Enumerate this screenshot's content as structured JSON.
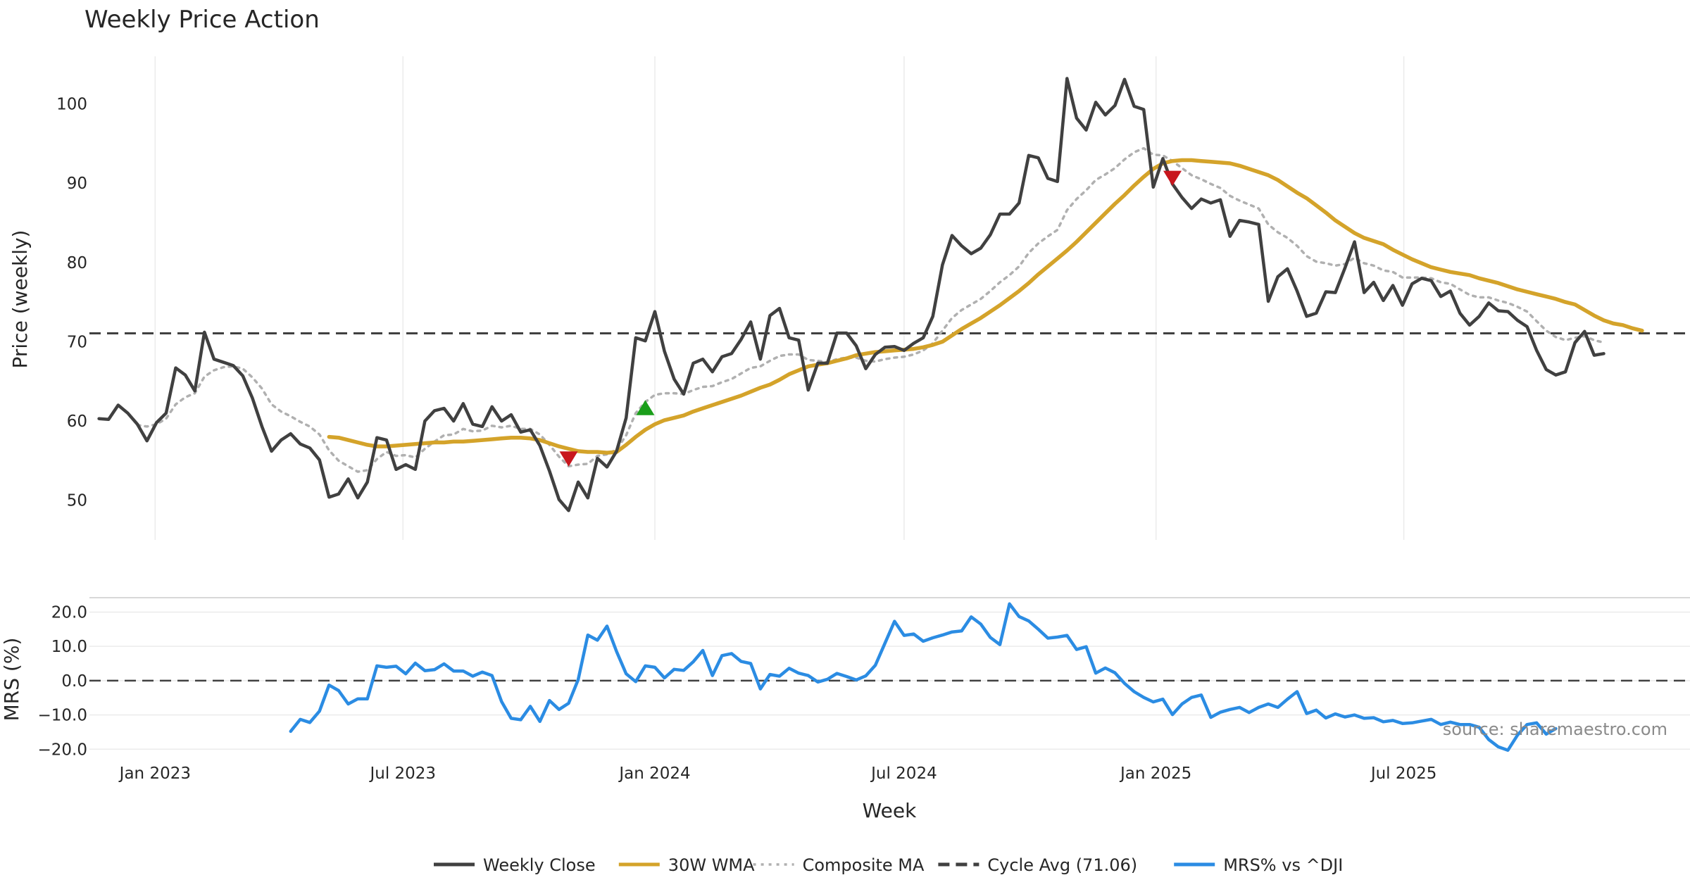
{
  "chart_data": [
    {
      "type": "line",
      "title": "Weekly Price Action",
      "ylabel": "Price (weekly)",
      "ylim": [
        45,
        106
      ],
      "yticks": [
        50,
        60,
        70,
        80,
        90,
        100
      ],
      "xlim": [
        "2022-11-14",
        "2026-01-26"
      ],
      "grid": true,
      "x_start": "2022-11-21",
      "x_step_days": 7,
      "series": [
        {
          "name": "Weekly Close",
          "color": "#404040",
          "values": [
            60.3,
            60.2,
            62.0,
            61.0,
            59.6,
            57.5,
            59.8,
            61.0,
            66.7,
            65.8,
            63.8,
            71.2,
            67.8,
            67.4,
            67.0,
            65.7,
            62.9,
            59.3,
            56.2,
            57.6,
            58.4,
            57.1,
            56.6,
            55.1,
            50.4,
            50.8,
            52.7,
            50.3,
            52.3,
            57.9,
            57.6,
            53.9,
            54.5,
            53.9,
            60.0,
            61.3,
            61.6,
            60.0,
            62.2,
            59.6,
            59.3,
            61.8,
            60.0,
            60.8,
            58.6,
            58.9,
            56.9,
            53.7,
            50.1,
            48.7,
            52.3,
            50.3,
            55.3,
            54.2,
            56.2,
            60.4,
            70.5,
            70.1,
            73.8,
            68.8,
            65.3,
            63.4,
            67.3,
            67.8,
            66.2,
            68.1,
            68.5,
            70.3,
            72.5,
            67.8,
            73.3,
            74.2,
            70.5,
            70.2,
            63.9,
            67.3,
            67.3,
            71.1,
            71.1,
            69.5,
            66.6,
            68.4,
            69.3,
            69.4,
            68.9,
            69.8,
            70.5,
            73.2,
            79.7,
            83.4,
            82.1,
            81.1,
            81.8,
            83.5,
            86.1,
            86.1,
            87.5,
            93.5,
            93.2,
            90.6,
            90.2,
            103.2,
            98.2,
            96.7,
            100.2,
            98.6,
            99.8,
            103.1,
            99.7,
            99.3,
            89.5,
            93.1,
            89.9,
            88.2,
            86.8,
            88.0,
            87.5,
            87.9,
            83.3,
            85.3,
            85.1,
            84.8,
            75.1,
            78.2,
            79.2,
            76.4,
            73.2,
            73.6,
            76.3,
            76.2,
            79.3,
            82.6,
            76.2,
            77.5,
            75.2,
            77.1,
            74.6,
            77.3,
            78.0,
            77.7,
            75.7,
            76.4,
            73.6,
            72.1,
            73.2,
            74.9,
            73.9,
            73.8,
            72.7,
            71.9,
            68.9,
            66.5,
            65.8,
            66.2,
            69.9,
            71.3,
            68.3,
            68.5
          ]
        },
        {
          "name": "30W WMA",
          "color": "#d4a32a",
          "x_start": "2023-05-08",
          "values": [
            58.0,
            57.9,
            57.6,
            57.3,
            57.0,
            56.8,
            56.8,
            56.9,
            57.0,
            57.1,
            57.2,
            57.3,
            57.3,
            57.4,
            57.4,
            57.5,
            57.6,
            57.7,
            57.8,
            57.9,
            57.9,
            57.8,
            57.6,
            57.2,
            56.8,
            56.5,
            56.2,
            56.1,
            56.1,
            56.0,
            56.1,
            57.0,
            58.0,
            58.9,
            59.6,
            60.1,
            60.4,
            60.7,
            61.2,
            61.6,
            62.0,
            62.4,
            62.8,
            63.2,
            63.7,
            64.2,
            64.6,
            65.2,
            65.9,
            66.4,
            66.9,
            67.1,
            67.3,
            67.6,
            67.9,
            68.3,
            68.5,
            68.7,
            68.8,
            68.9,
            69.0,
            69.1,
            69.3,
            69.6,
            70.0,
            70.8,
            71.6,
            72.3,
            73.0,
            73.8,
            74.6,
            75.5,
            76.4,
            77.4,
            78.5,
            79.5,
            80.5,
            81.5,
            82.6,
            83.8,
            85.0,
            86.2,
            87.4,
            88.5,
            89.7,
            90.8,
            91.8,
            92.5,
            92.8,
            92.9,
            92.9,
            92.8,
            92.7,
            92.6,
            92.5,
            92.2,
            91.8,
            91.4,
            91.0,
            90.4,
            89.6,
            88.8,
            88.1,
            87.2,
            86.3,
            85.3,
            84.5,
            83.7,
            83.1,
            82.7,
            82.3,
            81.6,
            81.0,
            80.4,
            79.9,
            79.4,
            79.1,
            78.8,
            78.6,
            78.4,
            78.0,
            77.7,
            77.4,
            77.0,
            76.6,
            76.3,
            76.0,
            75.7,
            75.4,
            75.0,
            74.7,
            74.0,
            73.3,
            72.7,
            72.3,
            72.1,
            71.7,
            71.4
          ]
        },
        {
          "name": "Composite MA",
          "color": "#b0b0b0",
          "values": [
            null,
            null,
            null,
            null,
            59.5,
            59.3,
            59.6,
            60.3,
            62.1,
            63.0,
            63.5,
            65.6,
            66.4,
            66.8,
            66.9,
            66.6,
            65.5,
            64.1,
            62.1,
            61.2,
            60.6,
            59.9,
            59.3,
            58.3,
            56.3,
            55.0,
            54.3,
            53.6,
            53.8,
            55.2,
            56.1,
            55.6,
            55.7,
            55.4,
            56.5,
            57.4,
            58.2,
            58.3,
            59.0,
            58.7,
            58.8,
            59.4,
            59.2,
            59.4,
            59.0,
            59.0,
            58.3,
            57.0,
            55.5,
            54.3,
            54.5,
            54.6,
            55.6,
            55.8,
            56.4,
            58.2,
            61.0,
            62.4,
            63.3,
            63.5,
            63.5,
            63.4,
            63.9,
            64.3,
            64.4,
            64.9,
            65.3,
            66.0,
            66.7,
            66.9,
            67.6,
            68.2,
            68.4,
            68.4,
            67.7,
            67.6,
            67.4,
            67.8,
            68.0,
            68.0,
            67.6,
            67.5,
            67.8,
            68.0,
            68.1,
            68.4,
            68.9,
            69.8,
            71.4,
            73.0,
            74.0,
            74.7,
            75.4,
            76.4,
            77.5,
            78.4,
            79.5,
            81.2,
            82.4,
            83.3,
            84.1,
            86.6,
            88.0,
            89.1,
            90.4,
            91.1,
            91.9,
            93.0,
            93.9,
            94.4,
            93.6,
            93.5,
            92.8,
            91.9,
            91.0,
            90.5,
            89.9,
            89.4,
            88.4,
            87.8,
            87.3,
            86.8,
            84.8,
            83.8,
            83.1,
            82.1,
            80.8,
            80.1,
            79.9,
            79.6,
            79.8,
            80.6,
            79.9,
            79.6,
            79.0,
            78.8,
            78.1,
            78.1,
            78.1,
            78.0,
            77.5,
            77.3,
            76.6,
            75.9,
            75.6,
            75.6,
            75.2,
            74.9,
            74.4,
            73.8,
            72.6,
            71.4,
            70.6,
            70.2,
            70.5,
            70.7,
            70.2,
            69.9
          ]
        }
      ],
      "reference_line": {
        "name": "Cycle Avg (71.06)",
        "value": 71.06,
        "color": "#404040"
      },
      "markers": [
        {
          "type": "sell",
          "x": "2023-10-30",
          "y": 55.3,
          "color": "#c8161d"
        },
        {
          "type": "buy",
          "x": "2023-12-25",
          "y": 61.6,
          "color": "#1a9e1a"
        },
        {
          "type": "sell",
          "x": "2025-01-13",
          "y": 90.7,
          "color": "#c8161d"
        }
      ]
    },
    {
      "type": "line",
      "ylabel": "MRS (%)",
      "xlabel": "Week",
      "ylim": [
        -22,
        24
      ],
      "yticks": [
        20.0,
        10.0,
        0.0,
        -10.0,
        -20.0
      ],
      "yticklabels": [
        "20.0",
        "10.0",
        "0.0",
        "−10.0",
        "−20.0"
      ],
      "xticks": [
        "2023-01-01",
        "2023-07-01",
        "2024-01-01",
        "2024-07-01",
        "2025-01-01",
        "2025-07-01"
      ],
      "xticklabels": [
        "Jan 2023",
        "Jul 2023",
        "Jan 2024",
        "Jul 2024",
        "Jan 2025",
        "Jul 2025"
      ],
      "series": [
        {
          "name": "MRS% vs ^DJI",
          "color": "#2b8ce3",
          "x_start": "2023-04-10",
          "values": [
            -14.8,
            -11.3,
            -12.2,
            -8.9,
            -1.3,
            -2.9,
            -6.8,
            -5.3,
            -5.3,
            4.3,
            3.9,
            4.2,
            2.0,
            5.1,
            2.9,
            3.2,
            4.9,
            2.8,
            2.8,
            1.3,
            2.5,
            1.5,
            -6.1,
            -11.0,
            -11.4,
            -7.5,
            -11.9,
            -5.8,
            -8.4,
            -6.6,
            0.3,
            13.3,
            11.8,
            15.9,
            8.5,
            2.0,
            -0.3,
            4.3,
            3.9,
            0.8,
            3.3,
            3.0,
            5.5,
            8.8,
            1.5,
            7.3,
            7.9,
            5.6,
            5.0,
            -2.4,
            1.8,
            1.3,
            3.6,
            2.2,
            1.5,
            -0.4,
            0.4,
            2.1,
            1.2,
            0.2,
            1.4,
            4.5,
            10.9,
            17.3,
            13.2,
            13.6,
            11.5,
            12.5,
            13.3,
            14.2,
            14.5,
            18.6,
            16.5,
            12.6,
            10.5,
            22.4,
            18.7,
            17.4,
            15.0,
            12.4,
            12.7,
            13.2,
            9.1,
            9.9,
            2.2,
            3.7,
            2.3,
            -0.8,
            -3.2,
            -4.9,
            -6.2,
            -5.4,
            -9.9,
            -6.8,
            -4.9,
            -4.2,
            -10.7,
            -9.2,
            -8.4,
            -7.8,
            -9.3,
            -7.8,
            -6.8,
            -7.8,
            -5.4,
            -3.2,
            -9.6,
            -8.6,
            -10.9,
            -9.7,
            -10.6,
            -10.0,
            -11.0,
            -10.8,
            -12.0,
            -11.6,
            -12.5,
            -12.3,
            -11.8,
            -11.3,
            -12.8,
            -12.1,
            -12.8,
            -12.8,
            -13.6,
            -17.2,
            -19.3,
            -20.3,
            -15.9,
            -12.8,
            -12.3,
            -15.6,
            -14.0
          ]
        }
      ],
      "reference_line": {
        "value": 0.0,
        "color": "#404040"
      },
      "annotation": "source: sharemaestro.com"
    }
  ],
  "legend": {
    "placement": "bottom-center",
    "items": [
      {
        "label": "Weekly Close",
        "style": "solid",
        "color": "#404040"
      },
      {
        "label": "30W WMA",
        "style": "solid",
        "color": "#d4a32a"
      },
      {
        "label": "Composite MA",
        "style": "dotted",
        "color": "#b0b0b0"
      },
      {
        "label": "Cycle Avg (71.06)",
        "style": "dashed",
        "color": "#404040"
      },
      {
        "label": "MRS% vs ^DJI",
        "style": "solid",
        "color": "#2b8ce3"
      }
    ]
  }
}
